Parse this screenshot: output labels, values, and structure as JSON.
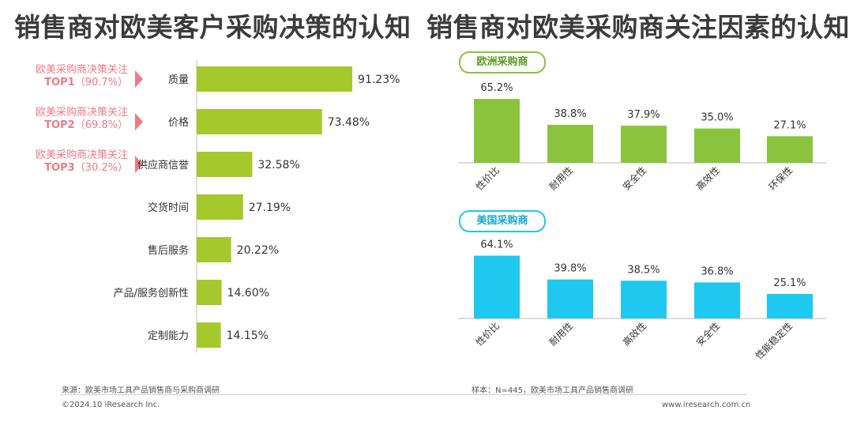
{
  "titles": {
    "left": "销售商对欧美客户采购决策的认知",
    "right": "销售商对欧美采购商关注因素的认知"
  },
  "top_notes": [
    {
      "label": "欧美采购商决策关注",
      "rank": "TOP1",
      "pct": "（90.7%）"
    },
    {
      "label": "欧美采购商决策关注",
      "rank": "TOP2",
      "pct": "（69.8%）"
    },
    {
      "label": "欧美采购商决策关注",
      "rank": "TOP3",
      "pct": "（30.2%）"
    }
  ],
  "chart_data": [
    {
      "type": "bar",
      "orientation": "horizontal",
      "title": "销售商对欧美客户采购决策的认知",
      "categories": [
        "质量",
        "价格",
        "供应商信誉",
        "交货时间",
        "售后服务",
        "产品/服务创新性",
        "定制能力"
      ],
      "values": [
        91.23,
        73.48,
        32.58,
        27.19,
        20.22,
        14.6,
        14.15
      ],
      "value_labels": [
        "91.23%",
        "73.48%",
        "32.58%",
        "27.19%",
        "20.22%",
        "14.60%",
        "14.15%"
      ],
      "color": "#a5c92c"
    },
    {
      "type": "bar",
      "title": "欧洲采购商",
      "categories": [
        "性价比",
        "耐用性",
        "安全性",
        "高效性",
        "环保性"
      ],
      "values": [
        65.2,
        38.8,
        37.9,
        35.0,
        27.1
      ],
      "value_labels": [
        "65.2%",
        "38.8%",
        "37.9%",
        "35.0%",
        "27.1%"
      ],
      "color": "#8ac43f"
    },
    {
      "type": "bar",
      "title": "美国采购商",
      "categories": [
        "性价比",
        "耐用性",
        "高效性",
        "安全性",
        "性能稳定性"
      ],
      "values": [
        64.1,
        39.8,
        38.5,
        36.8,
        25.1
      ],
      "value_labels": [
        "64.1%",
        "39.8%",
        "38.5%",
        "36.8%",
        "25.1%"
      ],
      "color": "#1ec8ef"
    }
  ],
  "footer": {
    "source": "来源：欧美市场工具产品销售商与采购商调研",
    "sample": "样本：N=445，欧美市场工具产品销售商调研",
    "copyright": "©2024.10 iResearch Inc.",
    "website": "www.iresearch.com.cn"
  }
}
